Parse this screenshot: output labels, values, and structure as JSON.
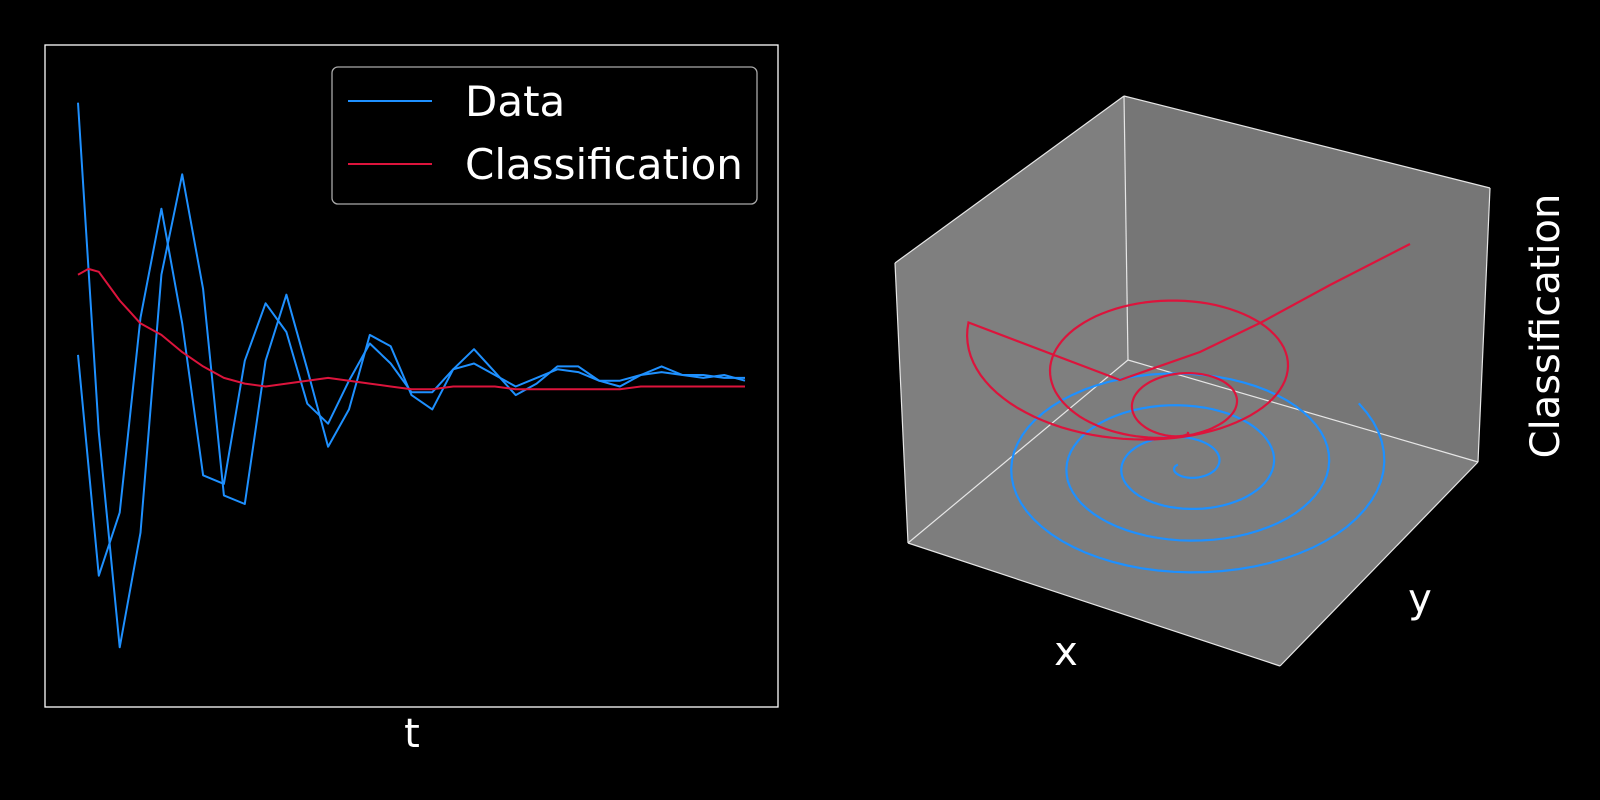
{
  "colors": {
    "background": "#000000",
    "foreground": "#ffffff",
    "data": "#1e90ff",
    "classification": "#dc143c",
    "pane": "#808080"
  },
  "chart_data": [
    {
      "type": "line",
      "title": "",
      "xlabel": "t",
      "ylabel": "",
      "grid": false,
      "ticks": "none",
      "legend": {
        "placement": "top-right",
        "entries": [
          "Data",
          "Classification"
        ]
      },
      "xlim": [
        0,
        16
      ],
      "ylim": [
        -1.05,
        1.05
      ],
      "series": [
        {
          "name": "Data",
          "color": "#1e90ff",
          "x": [
            0,
            0.5,
            1,
            1.5,
            2,
            2.5,
            3,
            3.5,
            4,
            4.5,
            5,
            5.5,
            6,
            6.5,
            7,
            7.5,
            8,
            8.5,
            9,
            9.5,
            10,
            10.5,
            11,
            11.5,
            12,
            12.5,
            13,
            13.5,
            14,
            14.5,
            15,
            15.5,
            16
          ],
          "values": [
            0.95,
            -0.2,
            -0.95,
            -0.55,
            0.35,
            0.7,
            0.3,
            -0.42,
            -0.45,
            0.05,
            0.28,
            0.02,
            -0.25,
            -0.12,
            0.14,
            0.1,
            -0.07,
            -0.12,
            0.02,
            0.09,
            0.01,
            -0.07,
            -0.03,
            0.03,
            0.03,
            -0.02,
            -0.04,
            0.0,
            0.03,
            0.0,
            -0.01,
            0.0,
            -0.02
          ]
        },
        {
          "name": "Data",
          "color": "#1e90ff",
          "x": [
            0,
            0.5,
            1,
            1.5,
            2,
            2.5,
            3,
            3.5,
            4,
            4.5,
            5,
            5.5,
            6,
            6.5,
            7,
            7.5,
            8,
            8.5,
            9,
            9.5,
            10,
            10.5,
            11,
            11.5,
            12,
            12.5,
            13,
            13.5,
            14,
            14.5,
            15,
            15.5,
            16
          ],
          "values": [
            0.07,
            -0.7,
            -0.48,
            0.2,
            0.58,
            0.18,
            -0.35,
            -0.38,
            0.05,
            0.25,
            0.15,
            -0.1,
            -0.17,
            -0.02,
            0.11,
            0.04,
            -0.06,
            -0.06,
            0.02,
            0.04,
            0.0,
            -0.04,
            -0.01,
            0.02,
            0.01,
            -0.02,
            -0.02,
            0.0,
            0.01,
            0.0,
            0.0,
            -0.01,
            -0.01
          ]
        },
        {
          "name": "Classification",
          "color": "#dc143c",
          "x": [
            0,
            0.25,
            0.5,
            1,
            1.5,
            2,
            2.5,
            3,
            3.5,
            4,
            4.5,
            5,
            5.5,
            6,
            6.5,
            7,
            7.5,
            8,
            8.5,
            9,
            9.5,
            10,
            10.5,
            11,
            11.5,
            12,
            12.5,
            13,
            13.5,
            14,
            14.5,
            15,
            15.5,
            16
          ],
          "values": [
            0.35,
            0.37,
            0.36,
            0.26,
            0.18,
            0.14,
            0.08,
            0.03,
            -0.01,
            -0.03,
            -0.04,
            -0.03,
            -0.02,
            -0.01,
            -0.02,
            -0.03,
            -0.04,
            -0.05,
            -0.05,
            -0.04,
            -0.04,
            -0.04,
            -0.05,
            -0.05,
            -0.05,
            -0.05,
            -0.05,
            -0.05,
            -0.04,
            -0.04,
            -0.04,
            -0.04,
            -0.04,
            -0.04
          ]
        }
      ]
    },
    {
      "type": "line",
      "subtype": "3d",
      "title": "",
      "xlabel": "x",
      "ylabel": "y",
      "zlabel": "Classification",
      "grid": false,
      "ticks": "none",
      "pane_color": "#808080",
      "series": [
        {
          "name": "Data",
          "color": "#1e90ff",
          "shape": "inward spiral on the floor plane, ending at the center"
        },
        {
          "name": "Classification",
          "color": "#dc143c",
          "shape": "spiral rising from the center toward the back-right"
        }
      ]
    }
  ]
}
